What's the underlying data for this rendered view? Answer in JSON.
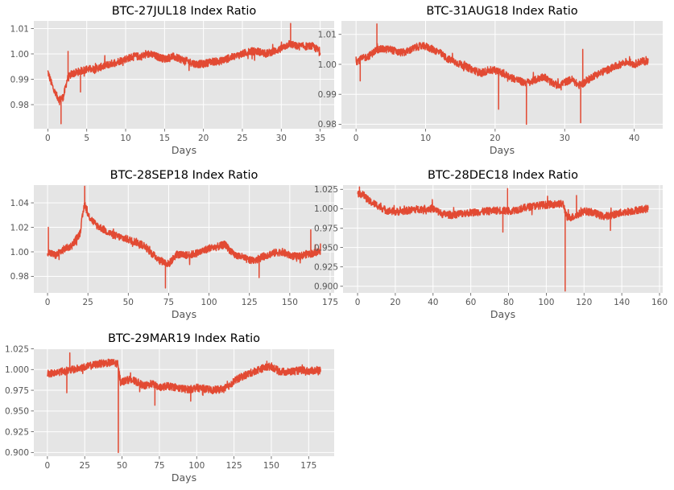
{
  "chart_data": [
    {
      "type": "line",
      "title": "BTC-27JUL18 Index Ratio",
      "xlabel": "Days",
      "ylabel": "",
      "xlim": [
        -1.8,
        36.8
      ],
      "ylim": [
        0.9705,
        1.013
      ],
      "xticks": [
        0,
        5,
        10,
        15,
        20,
        25,
        30,
        35
      ],
      "yticks": [
        0.98,
        0.99,
        1.0,
        1.01
      ],
      "ytick_labels": [
        "0.98",
        "0.99",
        "1.00",
        "1.01"
      ],
      "grid": true,
      "color": "#E24A33",
      "x": [
        0,
        0.5,
        1,
        1.5,
        2,
        2.5,
        3,
        4,
        5,
        6,
        7,
        8,
        9,
        10,
        11,
        12,
        13,
        14,
        15,
        16,
        17,
        18,
        19,
        20,
        21,
        22,
        23,
        24,
        25,
        26,
        27,
        28,
        29,
        30,
        31,
        32,
        33,
        34,
        35
      ],
      "values": [
        0.993,
        0.988,
        0.984,
        0.982,
        0.983,
        0.99,
        0.992,
        0.993,
        0.994,
        0.994,
        0.995,
        0.996,
        0.997,
        0.998,
        0.999,
        0.999,
        1.0,
        0.999,
        0.998,
        0.999,
        0.998,
        0.997,
        0.996,
        0.996,
        0.997,
        0.997,
        0.998,
        0.999,
        1.0,
        1.001,
        1.001,
        1.0,
        1.001,
        1.002,
        1.004,
        1.003,
        1.003,
        1.003,
        1.001
      ],
      "extremes": [
        [
          1.7,
          0.9725
        ],
        [
          2.6,
          1.001
        ],
        [
          31.2,
          1.012
        ],
        [
          4.2,
          0.985
        ]
      ]
    },
    {
      "type": "line",
      "title": "BTC-31AUG18 Index Ratio",
      "xlabel": "Days",
      "ylabel": "",
      "xlim": [
        -2.1,
        44.1
      ],
      "ylim": [
        0.9785,
        1.0145
      ],
      "xticks": [
        0,
        10,
        20,
        30,
        40
      ],
      "yticks": [
        0.98,
        0.99,
        1.0,
        1.01
      ],
      "ytick_labels": [
        "0.98",
        "0.99",
        "1.00",
        "1.01"
      ],
      "grid": true,
      "color": "#E24A33",
      "x": [
        0,
        1,
        2,
        3,
        4,
        5,
        6,
        7,
        8,
        9,
        10,
        11,
        12,
        13,
        14,
        15,
        16,
        17,
        18,
        19,
        20,
        21,
        22,
        23,
        24,
        25,
        26,
        27,
        28,
        29,
        30,
        31,
        32,
        33,
        34,
        35,
        36,
        37,
        38,
        39,
        40,
        41,
        42
      ],
      "values": [
        1.001,
        1.002,
        1.003,
        1.005,
        1.005,
        1.005,
        1.004,
        1.004,
        1.005,
        1.006,
        1.006,
        1.005,
        1.004,
        1.002,
        1.001,
        1.0,
        0.999,
        0.998,
        0.997,
        0.998,
        0.998,
        0.997,
        0.996,
        0.995,
        0.994,
        0.994,
        0.995,
        0.996,
        0.994,
        0.993,
        0.994,
        0.995,
        0.993,
        0.994,
        0.996,
        0.997,
        0.998,
        0.999,
        1.0,
        1.001,
        1.0,
        1.001,
        1.001
      ],
      "extremes": [
        [
          3.0,
          1.0135
        ],
        [
          0.6,
          0.9945
        ],
        [
          24.5,
          0.98
        ],
        [
          32.3,
          0.9805
        ],
        [
          32.6,
          1.005
        ],
        [
          20.5,
          0.985
        ]
      ]
    },
    {
      "type": "line",
      "title": "BTC-28SEP18 Index Ratio",
      "xlabel": "Days",
      "ylabel": "",
      "xlim": [
        -8.5,
        177.5
      ],
      "ylim": [
        0.9665,
        1.0545
      ],
      "xticks": [
        0,
        25,
        50,
        75,
        100,
        125,
        150,
        175
      ],
      "yticks": [
        0.98,
        1.0,
        1.02,
        1.04
      ],
      "ytick_labels": [
        "0.98",
        "1.00",
        "1.02",
        "1.04"
      ],
      "grid": true,
      "color": "#E24A33",
      "x": [
        0,
        5,
        10,
        15,
        20,
        23,
        25,
        30,
        35,
        40,
        45,
        50,
        55,
        60,
        65,
        70,
        75,
        80,
        85,
        90,
        95,
        100,
        105,
        110,
        115,
        120,
        125,
        130,
        135,
        140,
        145,
        150,
        155,
        160,
        165,
        169
      ],
      "values": [
        1.0,
        0.997,
        1.002,
        1.005,
        1.015,
        1.04,
        1.03,
        1.022,
        1.018,
        1.014,
        1.012,
        1.01,
        1.008,
        1.005,
        0.998,
        0.993,
        0.99,
        0.998,
        0.997,
        0.998,
        1.0,
        1.003,
        1.004,
        1.006,
        0.998,
        0.996,
        0.993,
        0.994,
        0.997,
        0.999,
        1.0,
        0.997,
        0.996,
        0.998,
        0.999,
        1.001
      ],
      "extremes": [
        [
          23.0,
          1.0535
        ],
        [
          73.0,
          0.9705
        ],
        [
          0.5,
          1.02
        ],
        [
          163.0,
          1.018
        ],
        [
          131.0,
          0.979
        ]
      ]
    },
    {
      "type": "line",
      "title": "BTC-28DEC18 Index Ratio",
      "xlabel": "Days",
      "ylabel": "",
      "xlim": [
        -7.7,
        161.7
      ],
      "ylim": [
        0.8915,
        1.0305
      ],
      "xticks": [
        0,
        20,
        40,
        60,
        80,
        100,
        120,
        140,
        160
      ],
      "yticks": [
        0.9,
        0.925,
        0.95,
        0.975,
        1.0,
        1.025
      ],
      "ytick_labels": [
        "0.900",
        "0.925",
        "0.950",
        "0.975",
        "1.000",
        "1.025"
      ],
      "grid": true,
      "color": "#E24A33",
      "x": [
        0,
        3,
        6,
        10,
        15,
        20,
        25,
        30,
        35,
        40,
        45,
        50,
        55,
        60,
        65,
        70,
        75,
        80,
        85,
        90,
        95,
        100,
        105,
        109,
        111,
        115,
        120,
        125,
        130,
        135,
        140,
        145,
        150,
        154
      ],
      "values": [
        1.02,
        1.018,
        1.01,
        1.005,
        0.998,
        0.996,
        0.997,
        0.999,
        1.0,
        1.0,
        0.993,
        0.992,
        0.994,
        0.995,
        0.996,
        0.997,
        0.998,
        0.997,
        0.999,
        1.002,
        1.004,
        1.005,
        1.006,
        1.006,
        0.988,
        0.99,
        0.997,
        0.995,
        0.99,
        0.992,
        0.995,
        0.997,
        0.999,
        1.0
      ],
      "extremes": [
        [
          110.0,
          0.894
        ],
        [
          79.5,
          1.026
        ],
        [
          1.0,
          1.028
        ],
        [
          77.0,
          0.97
        ],
        [
          116.0,
          1.017
        ],
        [
          134.0,
          0.972
        ]
      ]
    },
    {
      "type": "line",
      "title": "BTC-29MAR19 Index Ratio",
      "xlabel": "Days",
      "ylabel": "",
      "xlim": [
        -9.1,
        192.1
      ],
      "ylim": [
        0.8955,
        1.0255
      ],
      "xticks": [
        0,
        25,
        50,
        75,
        100,
        125,
        150,
        175
      ],
      "yticks": [
        0.9,
        0.925,
        0.95,
        0.975,
        1.0,
        1.025
      ],
      "ytick_labels": [
        "0.900",
        "0.925",
        "0.950",
        "0.975",
        "1.000",
        "1.025"
      ],
      "grid": true,
      "color": "#E24A33",
      "x": [
        0,
        5,
        10,
        15,
        20,
        25,
        30,
        35,
        40,
        45,
        47,
        49,
        55,
        60,
        65,
        70,
        75,
        80,
        85,
        90,
        95,
        100,
        105,
        110,
        115,
        120,
        125,
        130,
        135,
        140,
        145,
        150,
        155,
        160,
        165,
        170,
        175,
        180,
        183
      ],
      "values": [
        0.995,
        0.996,
        0.998,
        0.999,
        1.001,
        1.003,
        1.005,
        1.007,
        1.008,
        1.008,
        1.007,
        0.985,
        0.988,
        0.985,
        0.98,
        0.983,
        0.978,
        0.98,
        0.979,
        0.977,
        0.976,
        0.978,
        0.977,
        0.975,
        0.976,
        0.978,
        0.986,
        0.991,
        0.995,
        0.999,
        1.002,
        1.004,
        0.998,
        0.997,
        0.998,
        0.999,
        0.998,
        0.999,
        0.999
      ],
      "extremes": [
        [
          47.5,
          0.9
        ],
        [
          15.0,
          1.02
        ],
        [
          13.0,
          0.972
        ],
        [
          72.0,
          0.957
        ],
        [
          147.0,
          1.01
        ],
        [
          96.0,
          0.962
        ]
      ]
    }
  ]
}
